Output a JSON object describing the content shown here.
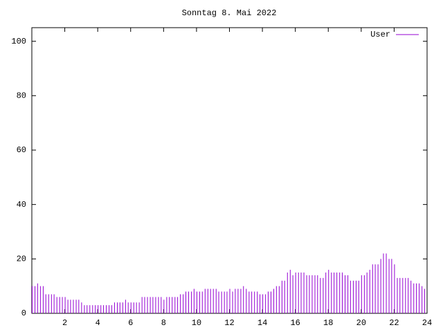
{
  "chart_data": {
    "type": "impulse",
    "title": "Sonntag 8. Mai 2022",
    "xlim": [
      0,
      24
    ],
    "xticks": [
      2,
      4,
      6,
      8,
      10,
      12,
      14,
      16,
      18,
      20,
      22,
      24
    ],
    "ylim": [
      0,
      105
    ],
    "yticks": [
      0,
      20,
      40,
      60,
      80,
      100
    ],
    "x": [
      0,
      0.17,
      0.33,
      0.5,
      0.67,
      0.83,
      1,
      1.17,
      1.33,
      1.5,
      1.67,
      1.83,
      2,
      2.17,
      2.33,
      2.5,
      2.67,
      2.83,
      3,
      3.17,
      3.33,
      3.5,
      3.67,
      3.83,
      4,
      4.17,
      4.33,
      4.5,
      4.67,
      4.83,
      5,
      5.17,
      5.33,
      5.5,
      5.67,
      5.83,
      6,
      6.17,
      6.33,
      6.5,
      6.67,
      6.83,
      7,
      7.17,
      7.33,
      7.5,
      7.67,
      7.83,
      8,
      8.17,
      8.33,
      8.5,
      8.67,
      8.83,
      9,
      9.17,
      9.33,
      9.5,
      9.67,
      9.83,
      10,
      10.17,
      10.33,
      10.5,
      10.67,
      10.83,
      11,
      11.17,
      11.33,
      11.5,
      11.67,
      11.83,
      12,
      12.17,
      12.33,
      12.5,
      12.67,
      12.83,
      13,
      13.17,
      13.33,
      13.5,
      13.67,
      13.83,
      14,
      14.17,
      14.33,
      14.5,
      14.67,
      14.83,
      15,
      15.17,
      15.33,
      15.5,
      15.67,
      15.83,
      16,
      16.17,
      16.33,
      16.5,
      16.67,
      16.83,
      17,
      17.17,
      17.33,
      17.5,
      17.67,
      17.83,
      18,
      18.17,
      18.33,
      18.5,
      18.67,
      18.83,
      19,
      19.17,
      19.33,
      19.5,
      19.67,
      19.83,
      20,
      20.17,
      20.33,
      20.5,
      20.67,
      20.83,
      21,
      21.17,
      21.33,
      21.5,
      21.67,
      21.83,
      22,
      22.17,
      22.33,
      22.5,
      22.67,
      22.83,
      23,
      23.17,
      23.33,
      23.5,
      23.67,
      23.83
    ],
    "series": [
      {
        "name": "User",
        "color": "#9400d3",
        "values": [
          10,
          10,
          11,
          10,
          10,
          7,
          7,
          7,
          7,
          6,
          6,
          6,
          6,
          5,
          5,
          5,
          5,
          5,
          4,
          3,
          3,
          3,
          3,
          3,
          3,
          3,
          3,
          3,
          3,
          3,
          4,
          4,
          4,
          4,
          5,
          4,
          4,
          4,
          4,
          4,
          6,
          6,
          6,
          6,
          6,
          6,
          6,
          6,
          5,
          6,
          6,
          6,
          6,
          6,
          7,
          7,
          8,
          8,
          8,
          9,
          8,
          8,
          8,
          9,
          9,
          9,
          9,
          9,
          8,
          8,
          8,
          8,
          9,
          8,
          9,
          9,
          9,
          10,
          9,
          8,
          8,
          8,
          8,
          7,
          7,
          7,
          8,
          8,
          9,
          10,
          10,
          12,
          12,
          15,
          16,
          14,
          15,
          15,
          15,
          15,
          14,
          14,
          14,
          14,
          14,
          13,
          13,
          15,
          16,
          15,
          15,
          15,
          15,
          15,
          14,
          14,
          12,
          12,
          12,
          12,
          14,
          14,
          15,
          16,
          18,
          18,
          18,
          20,
          22,
          22,
          20,
          20,
          18,
          13,
          13,
          13,
          13,
          13,
          12,
          11,
          11,
          11,
          10,
          9
        ]
      }
    ]
  }
}
